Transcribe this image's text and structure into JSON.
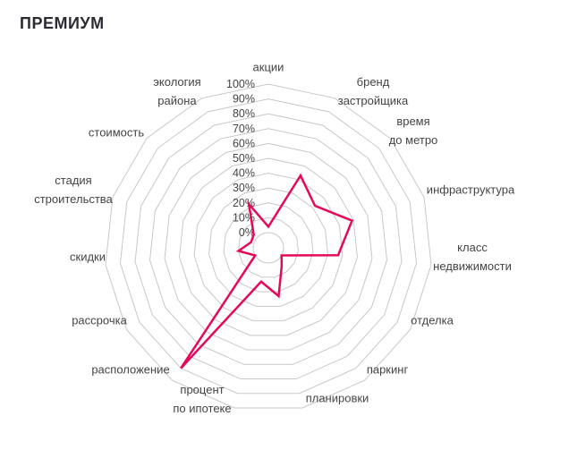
{
  "title": "ПРЕМИУМ",
  "chart_data": {
    "type": "radar",
    "title": "ПРЕМИУМ",
    "axes": [
      [
        "акции"
      ],
      [
        "бренд",
        "застройщика"
      ],
      [
        "время",
        "до метро"
      ],
      [
        "инфраструктура"
      ],
      [
        "класс",
        "недвижимости"
      ],
      [
        "отделка"
      ],
      [
        "паркинг"
      ],
      [
        "планировки"
      ],
      [
        "процент",
        "по ипотеке"
      ],
      [
        "расположение"
      ],
      [
        "рассрочка"
      ],
      [
        "скидки"
      ],
      [
        "стадия",
        "строительства"
      ],
      [
        "стоимость"
      ],
      [
        "экология",
        "района"
      ]
    ],
    "values": [
      4,
      43,
      32,
      49,
      37,
      0,
      5,
      23,
      13,
      90,
      0,
      10,
      2,
      3,
      22
    ],
    "ticks": [
      "0%",
      "10%",
      "20%",
      "30%",
      "40%",
      "50%",
      "60%",
      "70%",
      "80%",
      "90%",
      "100%"
    ],
    "range": [
      0,
      100
    ],
    "series_color": "#e5095c",
    "grid_color": "#c8c8c8"
  }
}
